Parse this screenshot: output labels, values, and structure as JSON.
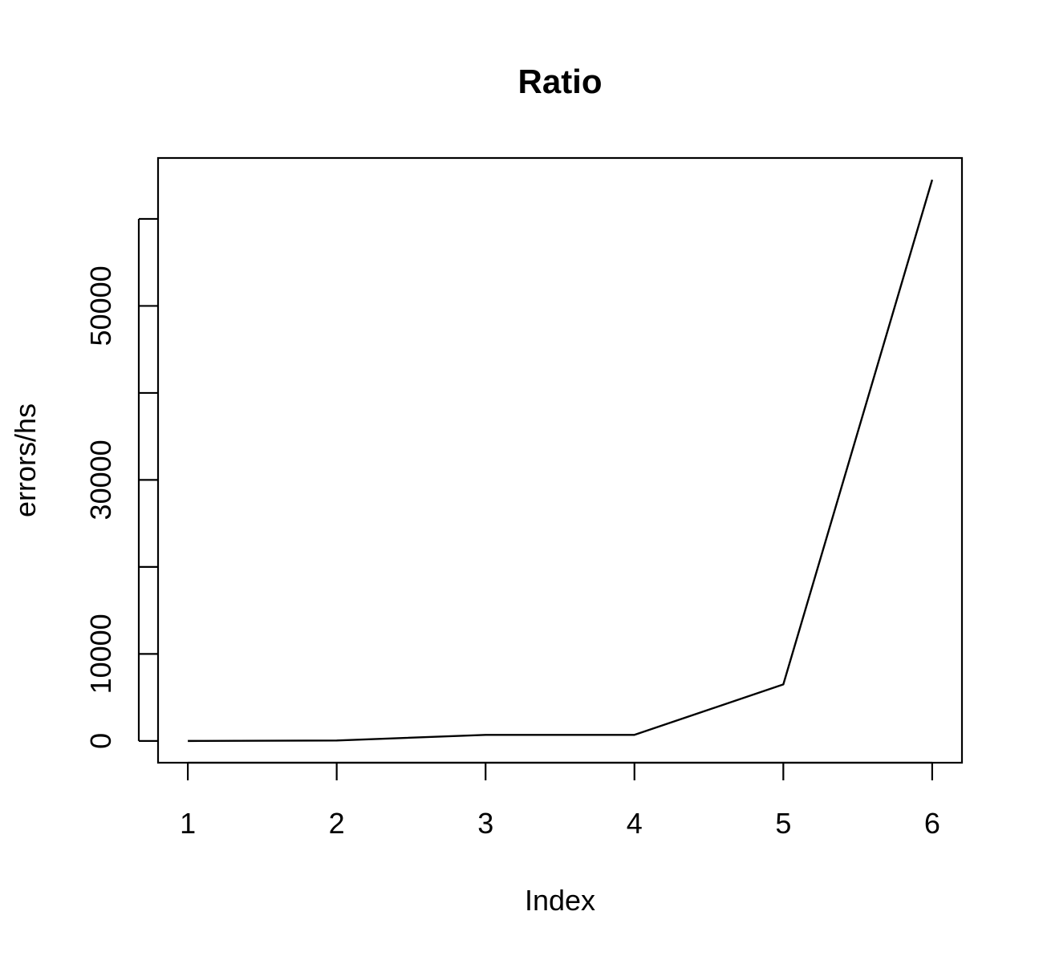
{
  "chart_data": {
    "type": "line",
    "title": "Ratio",
    "xlabel": "Index",
    "ylabel": "errors/hs",
    "x": [
      1,
      2,
      3,
      4,
      5,
      6
    ],
    "series": [
      {
        "values": [
          0,
          50,
          700,
          700,
          6500,
          64500
        ]
      }
    ],
    "xticks": [
      "1",
      "2",
      "3",
      "4",
      "5",
      "6"
    ],
    "yticks_major": [
      0,
      10000,
      20000,
      30000,
      40000,
      50000,
      60000
    ],
    "yticks_labeled": [
      "0",
      "10000",
      "30000",
      "50000"
    ],
    "xlim": [
      0.8,
      6.2
    ],
    "ylim": [
      -2500,
      67000
    ],
    "grid": false,
    "line_color": "#000000",
    "background": "#ffffff"
  }
}
